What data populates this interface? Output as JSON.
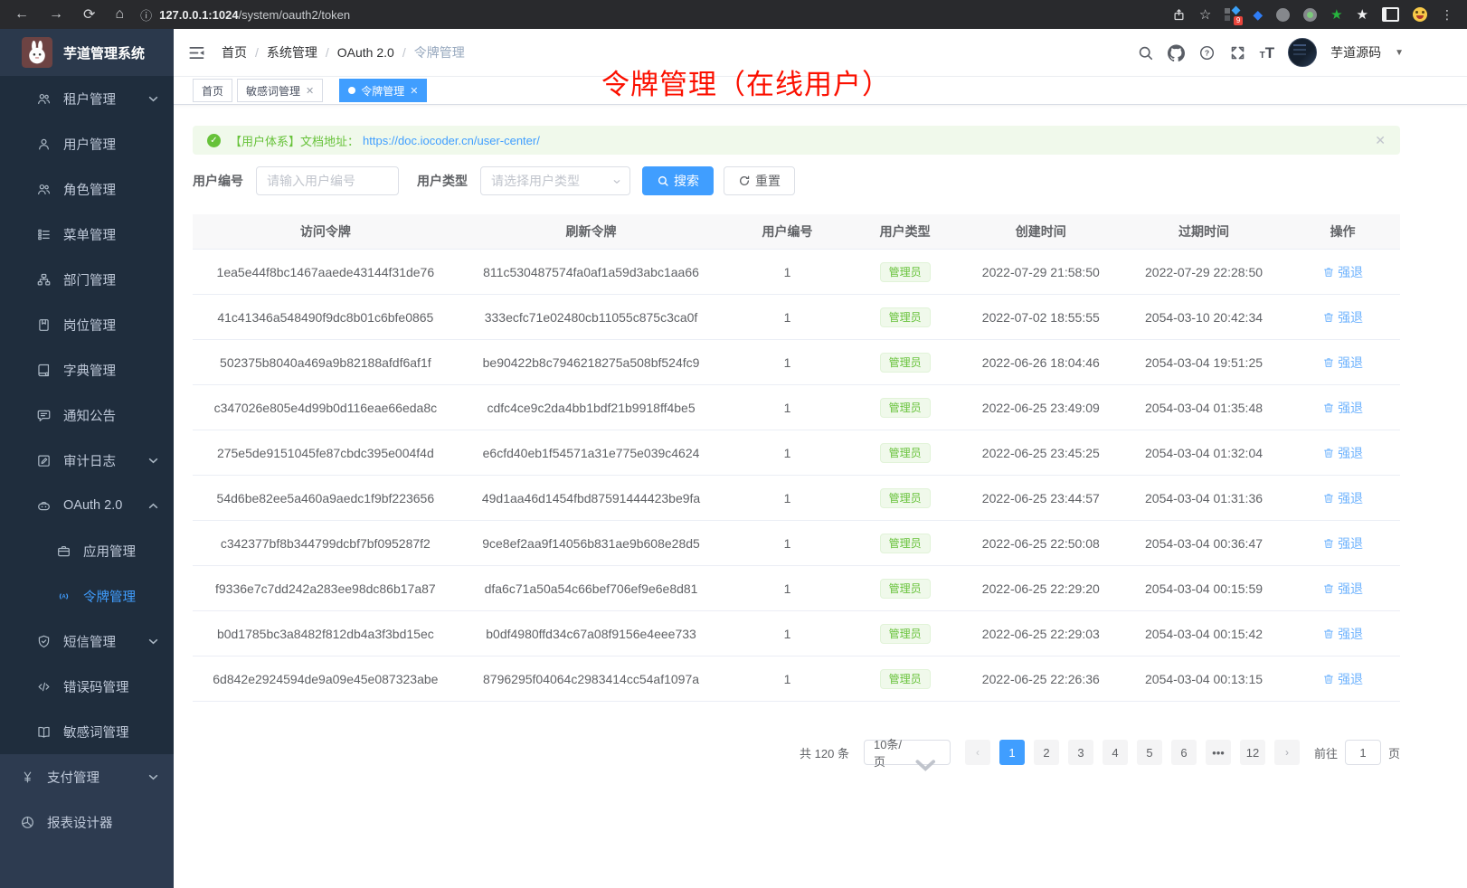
{
  "browser": {
    "url_host": "127.0.0.1:1024",
    "url_path": "/system/oauth2/token",
    "extension_badge": "9"
  },
  "sidebar": {
    "logo_title": "芋道管理系统",
    "items": [
      {
        "label": "租户管理",
        "icon": "users",
        "level": 2,
        "chevron": "down"
      },
      {
        "label": "用户管理",
        "icon": "user",
        "level": 2
      },
      {
        "label": "角色管理",
        "icon": "users",
        "level": 2
      },
      {
        "label": "菜单管理",
        "icon": "tree",
        "level": 2
      },
      {
        "label": "部门管理",
        "icon": "org",
        "level": 2
      },
      {
        "label": "岗位管理",
        "icon": "badge",
        "level": 2
      },
      {
        "label": "字典管理",
        "icon": "dict",
        "level": 2
      },
      {
        "label": "通知公告",
        "icon": "message",
        "level": 2
      },
      {
        "label": "审计日志",
        "icon": "edit",
        "level": 2,
        "chevron": "down"
      },
      {
        "label": "OAuth 2.0",
        "icon": "robot",
        "level": 2,
        "chevron": "up"
      },
      {
        "label": "应用管理",
        "icon": "briefcase",
        "level": 3
      },
      {
        "label": "令牌管理",
        "icon": "signal",
        "level": 3,
        "active": true
      },
      {
        "label": "短信管理",
        "icon": "shield",
        "level": 2,
        "chevron": "down"
      },
      {
        "label": "错误码管理",
        "icon": "code",
        "level": 2
      },
      {
        "label": "敏感词管理",
        "icon": "book",
        "level": 2
      },
      {
        "label": "支付管理",
        "icon": "yen",
        "level": 1,
        "chevron": "down"
      },
      {
        "label": "报表设计器",
        "icon": "chart",
        "level": 1
      }
    ]
  },
  "header": {
    "breadcrumb": [
      "首页",
      "系统管理",
      "OAuth 2.0",
      "令牌管理"
    ],
    "username": "芋道源码"
  },
  "tabs": [
    {
      "label": "首页",
      "closable": false,
      "active": false
    },
    {
      "label": "敏感词管理",
      "closable": true,
      "active": false
    },
    {
      "label": "令牌管理",
      "closable": true,
      "active": true
    }
  ],
  "annotation": "令牌管理（在线用户）",
  "alert": {
    "text": "【用户体系】文档地址：",
    "link": "https://doc.iocoder.cn/user-center/"
  },
  "filters": {
    "user_id_label": "用户编号",
    "user_id_placeholder": "请输入用户编号",
    "user_type_label": "用户类型",
    "user_type_placeholder": "请选择用户类型",
    "search_label": "搜索",
    "reset_label": "重置"
  },
  "table": {
    "columns": [
      "访问令牌",
      "刷新令牌",
      "用户编号",
      "用户类型",
      "创建时间",
      "过期时间",
      "操作"
    ],
    "action_label": "强退",
    "rows": [
      {
        "access": "1ea5e44f8bc1467aaede43144f31de76",
        "refresh": "811c530487574fa0af1a59d3abc1aa66",
        "user_id": "1",
        "user_type": "管理员",
        "created": "2022-07-29 21:58:50",
        "expires": "2022-07-29 22:28:50"
      },
      {
        "access": "41c41346a548490f9dc8b01c6bfe0865",
        "refresh": "333ecfc71e02480cb11055c875c3ca0f",
        "user_id": "1",
        "user_type": "管理员",
        "created": "2022-07-02 18:55:55",
        "expires": "2054-03-10 20:42:34"
      },
      {
        "access": "502375b8040a469a9b82188afdf6af1f",
        "refresh": "be90422b8c7946218275a508bf524fc9",
        "user_id": "1",
        "user_type": "管理员",
        "created": "2022-06-26 18:04:46",
        "expires": "2054-03-04 19:51:25"
      },
      {
        "access": "c347026e805e4d99b0d116eae66eda8c",
        "refresh": "cdfc4ce9c2da4bb1bdf21b9918ff4be5",
        "user_id": "1",
        "user_type": "管理员",
        "created": "2022-06-25 23:49:09",
        "expires": "2054-03-04 01:35:48"
      },
      {
        "access": "275e5de9151045fe87cbdc395e004f4d",
        "refresh": "e6cfd40eb1f54571a31e775e039c4624",
        "user_id": "1",
        "user_type": "管理员",
        "created": "2022-06-25 23:45:25",
        "expires": "2054-03-04 01:32:04"
      },
      {
        "access": "54d6be82ee5a460a9aedc1f9bf223656",
        "refresh": "49d1aa46d1454fbd87591444423be9fa",
        "user_id": "1",
        "user_type": "管理员",
        "created": "2022-06-25 23:44:57",
        "expires": "2054-03-04 01:31:36"
      },
      {
        "access": "c342377bf8b344799dcbf7bf095287f2",
        "refresh": "9ce8ef2aa9f14056b831ae9b608e28d5",
        "user_id": "1",
        "user_type": "管理员",
        "created": "2022-06-25 22:50:08",
        "expires": "2054-03-04 00:36:47"
      },
      {
        "access": "f9336e7c7dd242a283ee98dc86b17a87",
        "refresh": "dfa6c71a50a54c66bef706ef9e6e8d81",
        "user_id": "1",
        "user_type": "管理员",
        "created": "2022-06-25 22:29:20",
        "expires": "2054-03-04 00:15:59"
      },
      {
        "access": "b0d1785bc3a8482f812db4a3f3bd15ec",
        "refresh": "b0df4980ffd34c67a08f9156e4eee733",
        "user_id": "1",
        "user_type": "管理员",
        "created": "2022-06-25 22:29:03",
        "expires": "2054-03-04 00:15:42"
      },
      {
        "access": "6d842e2924594de9a09e45e087323abe",
        "refresh": "8796295f04064c2983414cc54af1097a",
        "user_id": "1",
        "user_type": "管理员",
        "created": "2022-06-25 22:26:36",
        "expires": "2054-03-04 00:13:15"
      }
    ]
  },
  "pagination": {
    "total": "共 120 条",
    "page_size": "10条/页",
    "pages": [
      "1",
      "2",
      "3",
      "4",
      "5",
      "6",
      "...",
      "12"
    ],
    "active_page": "1",
    "goto_label": "前往",
    "goto_value": "1",
    "page_unit": "页"
  },
  "colors": {
    "primary": "#409eff",
    "success": "#67c23a",
    "annotation_red": "#fb1000",
    "sidebar_dark": "#1f2d3d",
    "sidebar_light": "#2d3b50"
  }
}
